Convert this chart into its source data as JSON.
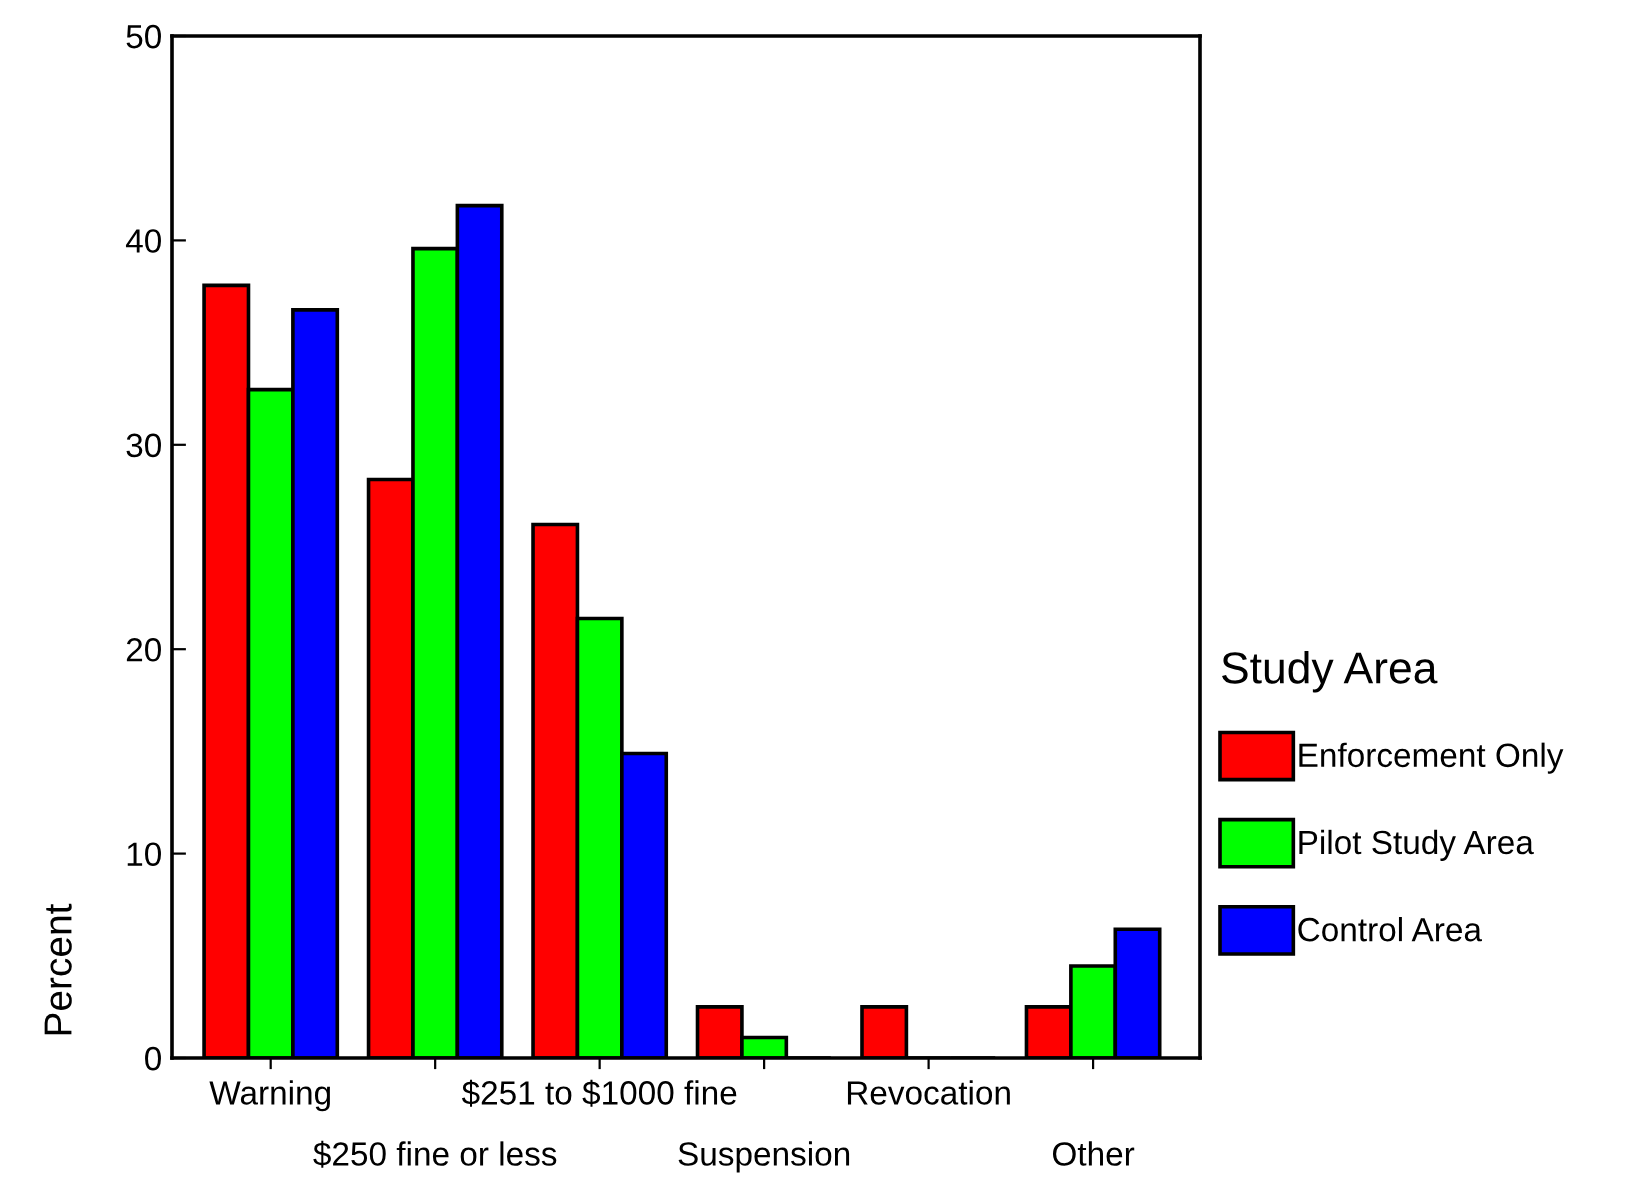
{
  "chart_data": {
    "type": "bar",
    "ylabel": "Percent",
    "legend_title": "Study Area",
    "legend": "right",
    "categories": [
      "Warning",
      "$250 fine or less",
      "$251 to $1000 fine",
      "Suspension",
      "Revocation",
      "Other"
    ],
    "series": [
      {
        "name": "Enforcement Only",
        "color": "#ff0000",
        "values": [
          37.8,
          28.3,
          26.1,
          2.5,
          2.5,
          2.5
        ]
      },
      {
        "name": "Pilot Study Area",
        "color": "#00ff00",
        "values": [
          32.7,
          39.6,
          21.5,
          1.0,
          0,
          4.5
        ]
      },
      {
        "name": "Control Area",
        "color": "#0000ff",
        "values": [
          36.6,
          41.7,
          14.9,
          0,
          0,
          6.3
        ]
      }
    ],
    "ylim": [
      0,
      50
    ],
    "yticks": [
      0,
      10,
      20,
      30,
      40,
      50
    ],
    "grid": false
  }
}
